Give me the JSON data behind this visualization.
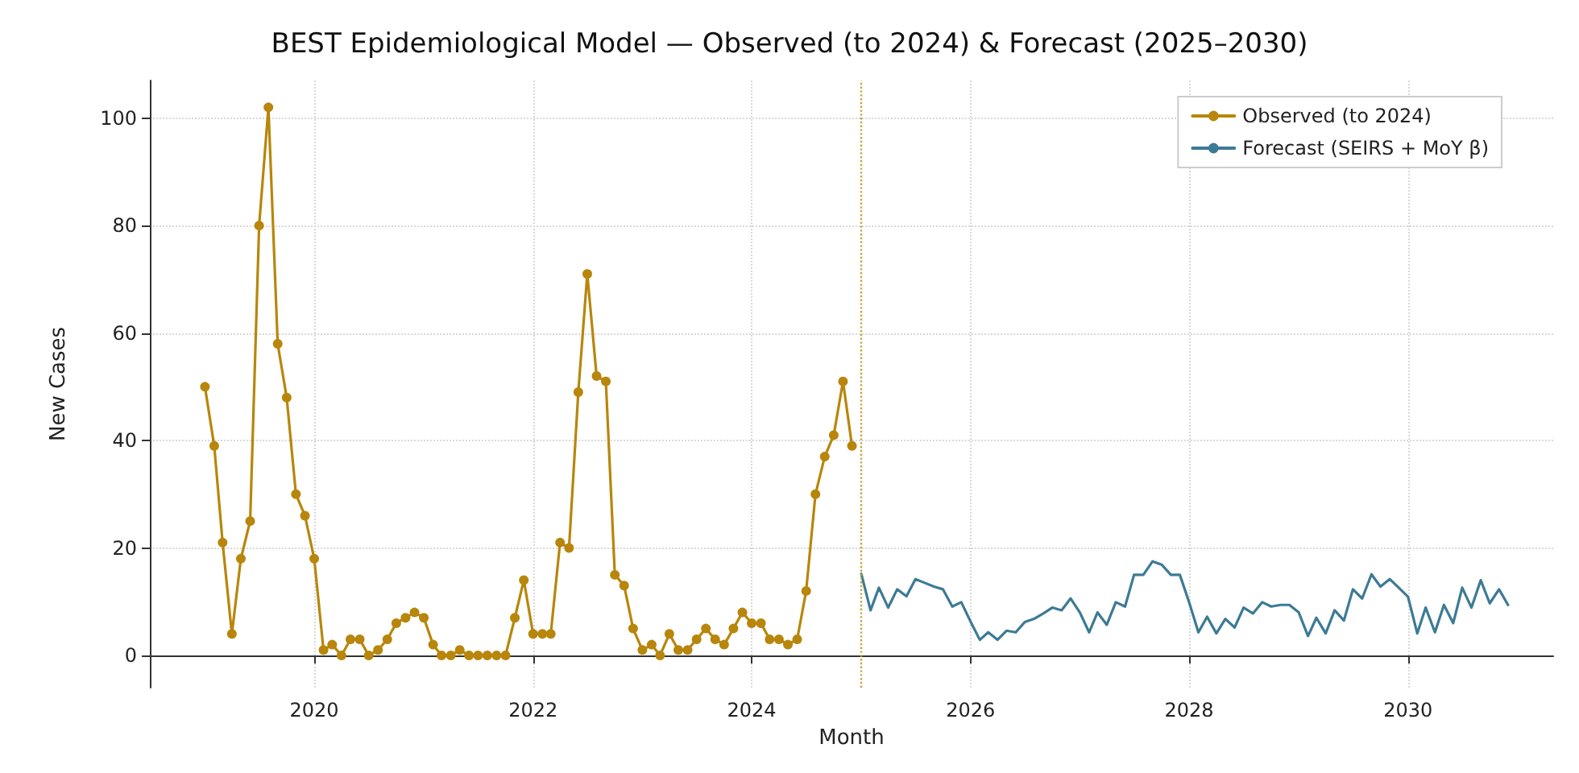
{
  "chart_data": {
    "type": "line",
    "title": "BEST Epidemiological Model — Observed (to 2024) & Forecast (2025–2030)",
    "xlabel": "Month",
    "ylabel": "New Cases",
    "xlim": [
      "2018-07",
      "2031-05"
    ],
    "xticks": [
      "2020",
      "2022",
      "2024",
      "2026",
      "2028",
      "2030"
    ],
    "ylim": [
      -6,
      107
    ],
    "yticks": [
      0,
      20,
      40,
      60,
      80,
      100
    ],
    "grid": true,
    "legend": "top right",
    "ref_lines": [
      {
        "axis": "x",
        "value": "2025-01",
        "color": "#c9a63a",
        "line_style": "dotted"
      }
    ],
    "series": [
      {
        "name": "Observed (to 2024)",
        "color": "#b8860b",
        "marker": "circle",
        "line_style": "solid",
        "x": [
          "2019-01",
          "2019-02",
          "2019-03",
          "2019-04",
          "2019-05",
          "2019-06",
          "2019-07",
          "2019-08",
          "2019-09",
          "2019-10",
          "2019-11",
          "2019-12",
          "2020-01",
          "2020-02",
          "2020-03",
          "2020-04",
          "2020-05",
          "2020-06",
          "2020-07",
          "2020-08",
          "2020-09",
          "2020-10",
          "2020-11",
          "2020-12",
          "2021-01",
          "2021-02",
          "2021-03",
          "2021-04",
          "2021-05",
          "2021-06",
          "2021-07",
          "2021-08",
          "2021-09",
          "2021-10",
          "2021-11",
          "2021-12",
          "2022-01",
          "2022-02",
          "2022-03",
          "2022-04",
          "2022-05",
          "2022-06",
          "2022-07",
          "2022-08",
          "2022-09",
          "2022-10",
          "2022-11",
          "2022-12",
          "2023-01",
          "2023-02",
          "2023-03",
          "2023-04",
          "2023-05",
          "2023-06",
          "2023-07",
          "2023-08",
          "2023-09",
          "2023-10",
          "2023-11",
          "2023-12",
          "2024-01",
          "2024-02",
          "2024-03",
          "2024-04",
          "2024-05",
          "2024-06",
          "2024-07",
          "2024-08",
          "2024-09",
          "2024-10",
          "2024-11",
          "2024-12"
        ],
        "values": [
          50,
          39,
          21,
          4,
          18,
          25,
          80,
          102,
          58,
          48,
          30,
          26,
          18,
          1,
          2,
          0,
          3,
          3,
          0,
          1,
          3,
          6,
          7,
          8,
          7,
          2,
          0,
          0,
          1,
          0,
          0,
          0,
          0,
          0,
          7,
          14,
          4,
          4,
          4,
          21,
          20,
          49,
          71,
          52,
          51,
          15,
          13,
          5,
          1,
          2,
          0,
          4,
          1,
          1,
          3,
          5,
          3,
          2,
          5,
          8,
          6,
          6,
          3,
          3,
          2,
          3,
          12,
          30,
          37,
          41,
          51,
          39
        ]
      },
      {
        "name": "Forecast (SEIRS + MoY β)",
        "color": "#3d7a96",
        "marker": "none",
        "line_style": "solid",
        "x": [
          "2025-01",
          "2025-02",
          "2025-03",
          "2025-04",
          "2025-05",
          "2025-06",
          "2025-07",
          "2025-08",
          "2025-09",
          "2025-10",
          "2025-11",
          "2025-12",
          "2026-01",
          "2026-02",
          "2026-03",
          "2026-04",
          "2026-05",
          "2026-06",
          "2026-07",
          "2026-08",
          "2026-09",
          "2026-10",
          "2026-11",
          "2026-12",
          "2027-01",
          "2027-02",
          "2027-03",
          "2027-04",
          "2027-05",
          "2027-06",
          "2027-07",
          "2027-08",
          "2027-09",
          "2027-10",
          "2027-11",
          "2027-12",
          "2028-01",
          "2028-02",
          "2028-03",
          "2028-04",
          "2028-05",
          "2028-06",
          "2028-07",
          "2028-08",
          "2028-09",
          "2028-10",
          "2028-11",
          "2028-12",
          "2029-01",
          "2029-02",
          "2029-03",
          "2029-04",
          "2029-05",
          "2029-06",
          "2029-07",
          "2029-08",
          "2029-09",
          "2029-10",
          "2029-11",
          "2029-12",
          "2030-01",
          "2030-02",
          "2030-03",
          "2030-04",
          "2030-05",
          "2030-06",
          "2030-07",
          "2030-08",
          "2030-09",
          "2030-10",
          "2030-11",
          "2030-12"
        ],
        "values": [
          15.2,
          8.4,
          12.6,
          8.9,
          12.3,
          11,
          14.2,
          13.5,
          12.8,
          12.3,
          9.1,
          9.9,
          6.3,
          2.9,
          4.3,
          2.9,
          4.6,
          4.3,
          6.2,
          6.8,
          7.8,
          8.9,
          8.4,
          10.6,
          8,
          4.3,
          8,
          5.7,
          9.9,
          9.1,
          15,
          15,
          17.5,
          16.9,
          15,
          15,
          9.9,
          4.3,
          7.2,
          4.1,
          6.8,
          5.2,
          8.9,
          7.8,
          9.9,
          9.1,
          9.4,
          9.4,
          8,
          3.6,
          7,
          4.1,
          8.4,
          6.5,
          12.3,
          10.6,
          15.1,
          12.8,
          14.2,
          12.6,
          10.9,
          4.1,
          8.9,
          4.3,
          9.4,
          6,
          12.6,
          8.9,
          14,
          9.7,
          12.3,
          9.4
        ]
      }
    ]
  }
}
